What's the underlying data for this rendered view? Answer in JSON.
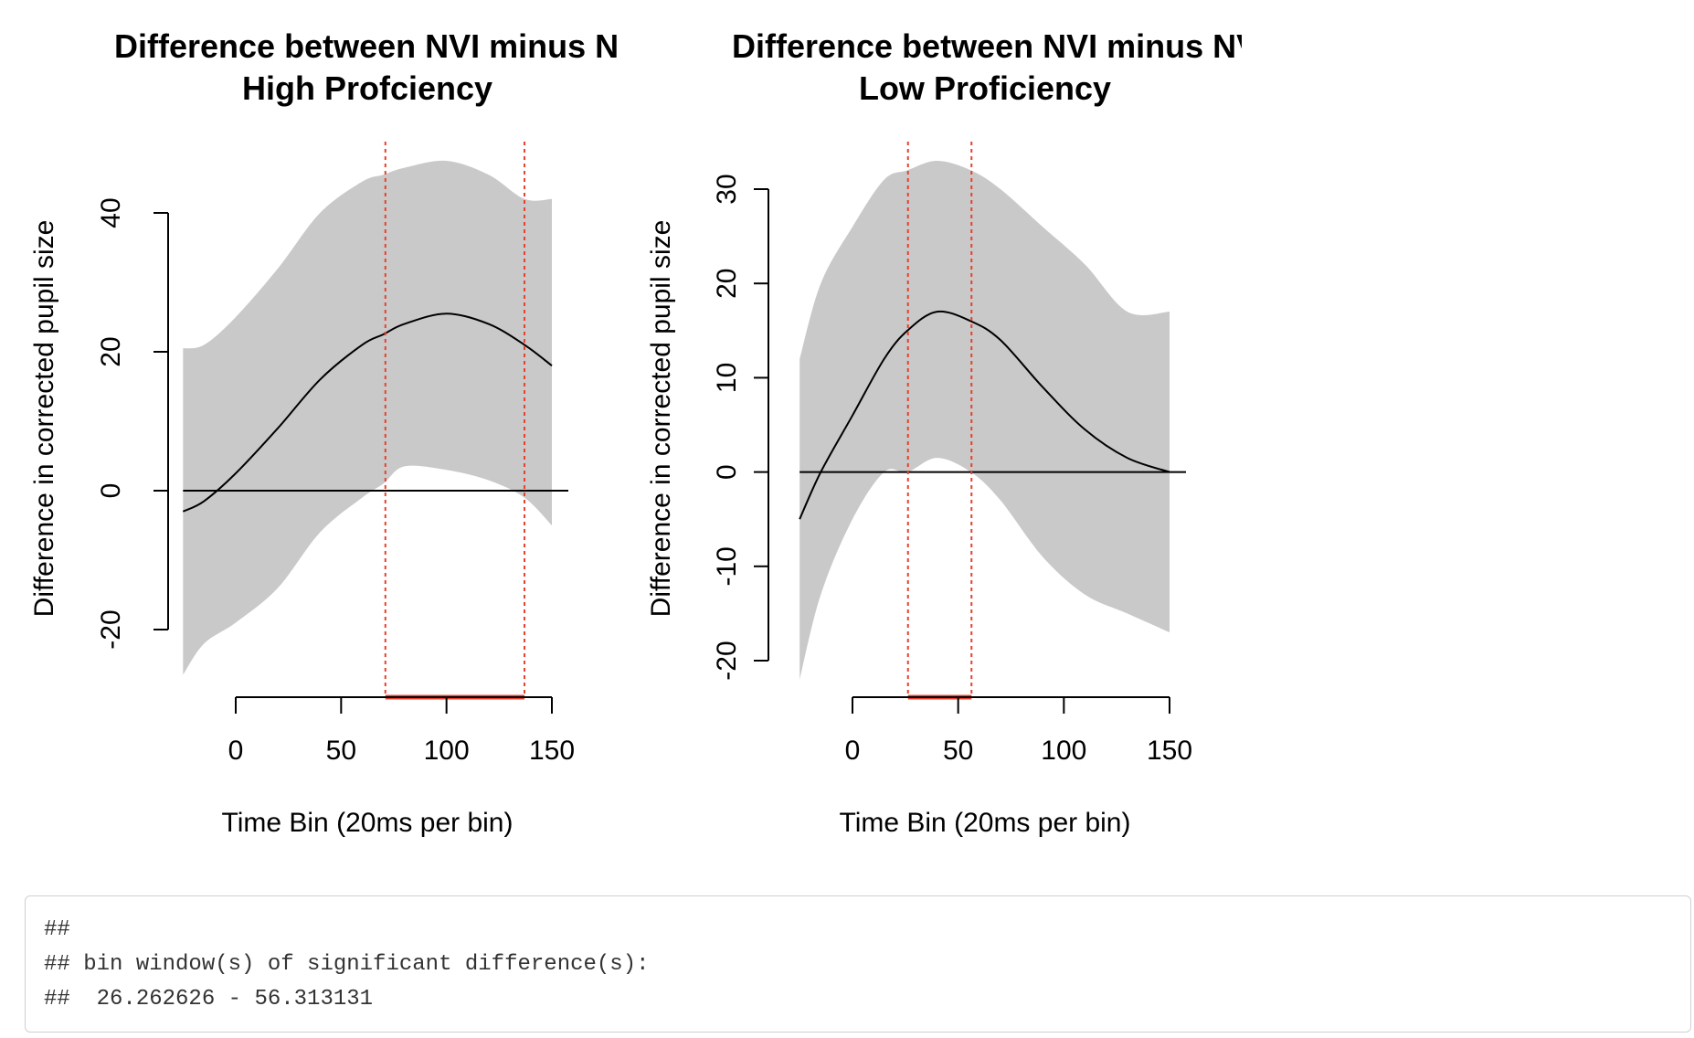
{
  "colors": {
    "band": "#c9c9c9",
    "curve": "#000000",
    "significance": "#e8402d",
    "zero_line": "#000000"
  },
  "chart_data": [
    {
      "type": "area",
      "title": "Difference between NVI minus NVS",
      "subtitle": "High Profciency",
      "xlabel": "Time Bin (20ms per bin)",
      "ylabel": "Difference in corrected pupil size",
      "xlim": [
        -30,
        155
      ],
      "ylim": [
        -30,
        50
      ],
      "x_ticks": [
        0,
        50,
        100,
        150
      ],
      "x_tick_labels": [
        "0",
        "50",
        "100",
        "150"
      ],
      "y_ticks": [
        -20,
        0,
        20,
        40
      ],
      "y_tick_labels": [
        "-20",
        "0",
        "20",
        "40"
      ],
      "zero_line": true,
      "series": [
        {
          "x": [
            -25,
            -15,
            0,
            20,
            40,
            60,
            70,
            80,
            100,
            120,
            137,
            150
          ],
          "estimate": [
            -3,
            -1.5,
            2.5,
            9,
            16,
            21,
            22.5,
            24,
            25.5,
            24,
            21,
            18
          ],
          "lower": [
            -26.5,
            -22,
            -19,
            -14,
            -6,
            -1,
            1,
            3.5,
            3,
            1.5,
            -1,
            -5
          ],
          "upper": [
            20.5,
            21,
            25,
            32,
            40,
            44.5,
            45.5,
            46.5,
            47.5,
            45.5,
            42,
            42
          ]
        }
      ],
      "significant_windows": [
        [
          71,
          137
        ]
      ]
    },
    {
      "type": "area",
      "title": "Difference between NVI minus NVS",
      "subtitle": "Low Proficiency",
      "xlabel": "Time Bin (20ms per bin)",
      "ylabel": "Difference in corrected pupil size",
      "xlim": [
        -30,
        155
      ],
      "ylim": [
        -23,
        33
      ],
      "x_ticks": [
        0,
        50,
        100,
        150
      ],
      "x_tick_labels": [
        "0",
        "50",
        "100",
        "150"
      ],
      "y_ticks": [
        -20,
        -10,
        0,
        10,
        20,
        30
      ],
      "y_tick_labels": [
        "-20",
        "-10",
        "0",
        "10",
        "20",
        "30"
      ],
      "zero_line": true,
      "series": [
        {
          "x": [
            -25,
            -15,
            0,
            15,
            26,
            40,
            56,
            70,
            90,
            110,
            130,
            150
          ],
          "estimate": [
            -5,
            0,
            6,
            12,
            15,
            17,
            16,
            14,
            9,
            4.5,
            1.5,
            0
          ],
          "lower": [
            -22,
            -13,
            -5,
            0,
            0,
            1.5,
            0,
            -3,
            -9,
            -13,
            -15,
            -17
          ],
          "upper": [
            12,
            20,
            26,
            31,
            32,
            33,
            32,
            30,
            26,
            22,
            17,
            17
          ]
        }
      ],
      "significant_windows": [
        [
          26.262626,
          56.313131
        ]
      ]
    }
  ],
  "console": {
    "line1": "##",
    "line2": "## bin window(s) of significant difference(s):",
    "line3": "##  26.262626 - 56.313131"
  }
}
